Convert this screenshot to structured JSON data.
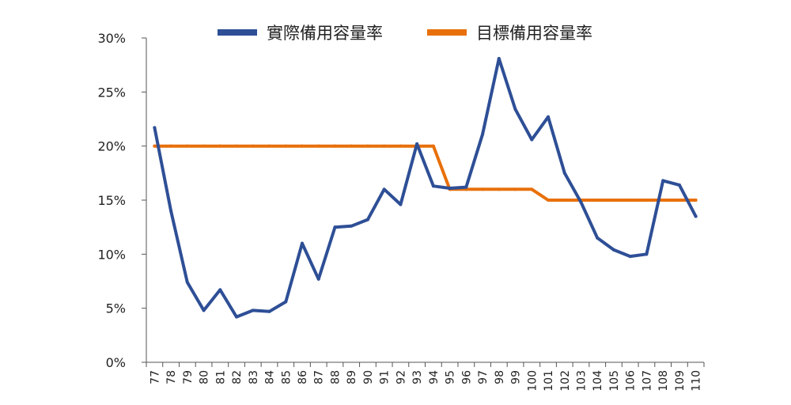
{
  "chart_data": {
    "type": "line",
    "categories": [
      "77",
      "78",
      "79",
      "80",
      "81",
      "82",
      "83",
      "84",
      "85",
      "86",
      "87",
      "88",
      "89",
      "90",
      "91",
      "92",
      "93",
      "94",
      "95",
      "96",
      "97",
      "98",
      "99",
      "100",
      "101",
      "102",
      "103",
      "104",
      "105",
      "106",
      "107",
      "108",
      "109",
      "110"
    ],
    "series": [
      {
        "name": "實際備用容量率",
        "color": "#2e4f96",
        "values": [
          21.7,
          14.0,
          7.4,
          4.8,
          6.7,
          4.2,
          4.8,
          4.7,
          5.6,
          11.0,
          7.7,
          12.5,
          12.6,
          13.2,
          16.0,
          14.6,
          20.2,
          16.3,
          16.1,
          16.2,
          21.1,
          28.1,
          23.4,
          20.6,
          22.7,
          17.5,
          14.8,
          11.5,
          10.4,
          9.8,
          10.0,
          16.8,
          16.4,
          13.5
        ]
      },
      {
        "name": "目標備用容量率",
        "color": "#e8700a",
        "values": [
          20,
          20,
          20,
          20,
          20,
          20,
          20,
          20,
          20,
          20,
          20,
          20,
          20,
          20,
          20,
          20,
          20,
          20,
          16,
          16,
          16,
          16,
          16,
          16,
          15,
          15,
          15,
          15,
          15,
          15,
          15,
          15,
          15,
          15
        ]
      }
    ],
    "yticks": [
      "0%",
      "5%",
      "10%",
      "15%",
      "20%",
      "25%",
      "30%"
    ],
    "ylim": [
      0,
      30
    ],
    "legend_position": "top",
    "grid": false
  }
}
